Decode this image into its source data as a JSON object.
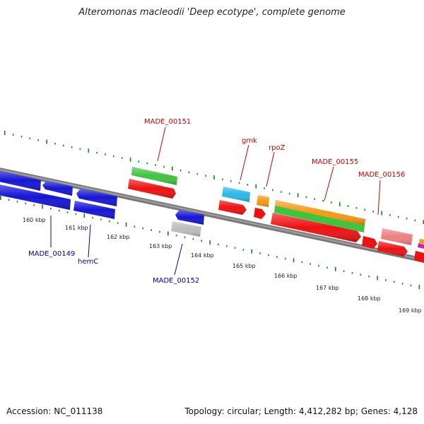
{
  "title": "Alteromonas macleodii 'Deep ecotype', complete genome",
  "footer": {
    "accession": "Accession: NC_011138",
    "topology": "Topology: circular; Length: 4,412,282 bp; Genes: 4,128"
  },
  "kbp_labels": [
    "160 kbp",
    "161 kbp",
    "162 kbp",
    "163 kbp",
    "164 kbp",
    "165 kbp",
    "166 kbp",
    "167 kbp",
    "168 kbp",
    "169 kbp"
  ],
  "gene_labels": {
    "MADE_00151": "MADE_00151",
    "gmk": "gmk",
    "rpoZ": "rpoZ",
    "MADE_00155": "MADE_00155",
    "MADE_00156": "MADE_00156",
    "MADE_00149": "MADE_00149",
    "hemC": "hemC",
    "MADE_00152": "MADE_00152"
  },
  "colors": {
    "blue": "#1515d6",
    "red": "#ee1111",
    "green": "#3fc43f",
    "cyan": "#2ab8ea",
    "orange": "#f59a14",
    "salmon": "#ee8080",
    "gray": "#bdbdbd",
    "magenta": "#cc22aa",
    "backbone": "#7a7a7a",
    "ticks": "#118811",
    "label_red": "#cc0000",
    "label_blue": "#0000aa"
  }
}
